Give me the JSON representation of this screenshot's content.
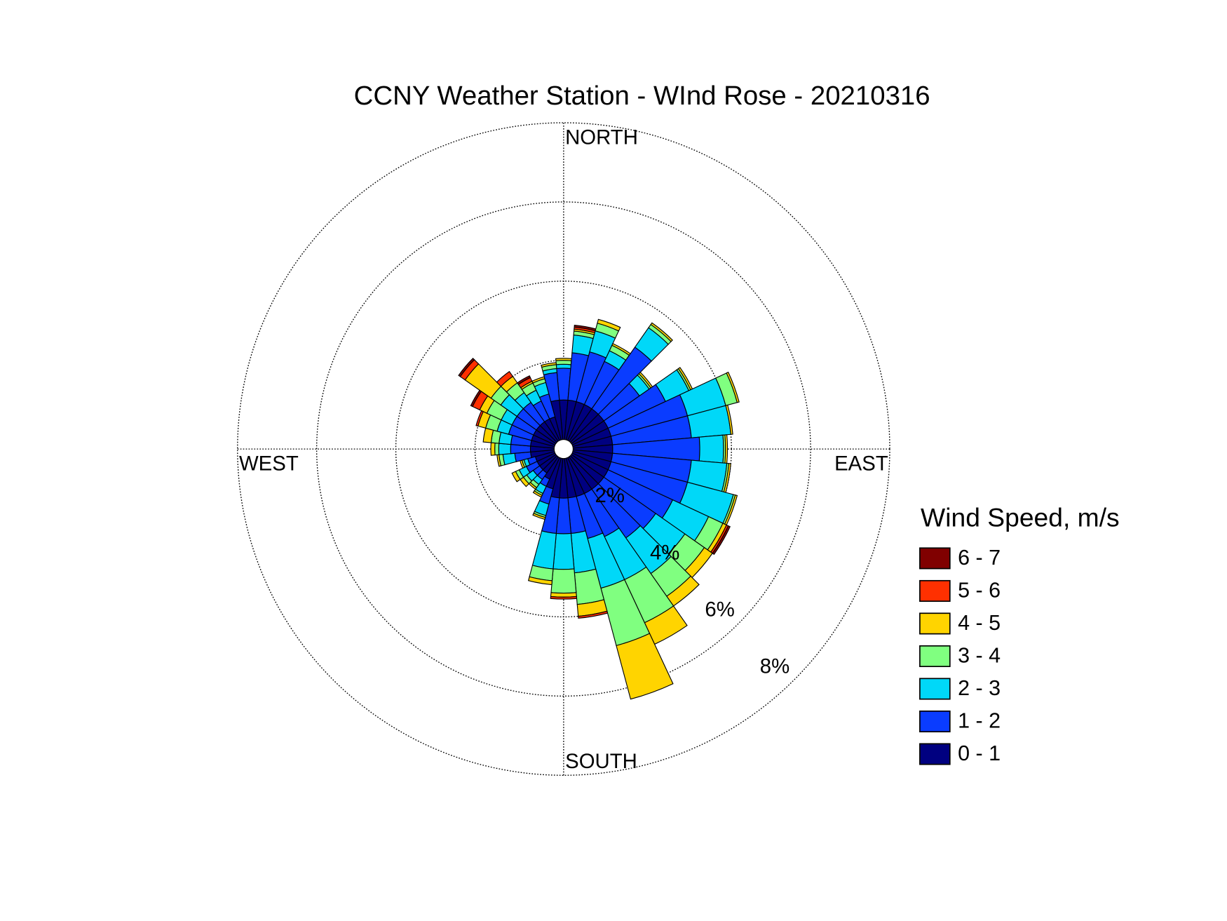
{
  "chart_data": {
    "type": "windrose",
    "title": "CCNY Weather Station - WInd Rose - 20210316",
    "direction_labels": [
      "NORTH",
      "EAST",
      "SOUTH",
      "WEST"
    ],
    "legend_title": "Wind Speed, m/s",
    "categories": [
      null,
      null,
      null,
      null,
      null,
      null,
      null,
      null,
      null,
      null,
      null,
      null,
      null,
      null,
      null,
      null,
      null,
      null,
      null,
      null,
      null,
      null,
      null,
      null,
      null,
      null,
      null,
      null,
      null,
      null,
      null,
      null,
      null,
      null,
      null,
      null
    ],
    "rlim": [
      0,
      8
    ],
    "rticks": [
      {
        "value": 2,
        "label": "2%"
      },
      {
        "value": 4,
        "label": "4%"
      },
      {
        "value": 6,
        "label": "6%"
      },
      {
        "value": 8,
        "label": "8%"
      }
    ],
    "grid": true,
    "series": [
      {
        "name": "0 - 1",
        "color": "#000080",
        "values": [
          1.0,
          1.0,
          1.0,
          1.0,
          1.0,
          1.0,
          1.0,
          1.0,
          1.0,
          1.0,
          1.0,
          1.0,
          1.0,
          1.0,
          1.0,
          1.0,
          1.0,
          1.0,
          1.0,
          1.0,
          0.8,
          0.6,
          0.5,
          0.5,
          0.5,
          0.5,
          0.6,
          0.6,
          0.6,
          0.6,
          0.6,
          0.6,
          0.6,
          0.6,
          0.6,
          1.0
        ]
      },
      {
        "name": "1 - 2",
        "color": "#0a3cff",
        "values": [
          0.8,
          1.2,
          1.3,
          1.2,
          1.9,
          1.1,
          1.6,
          2.0,
          2.0,
          2.2,
          2.0,
          2.0,
          1.8,
          1.6,
          1.5,
          1.2,
          1.1,
          0.9,
          0.9,
          0.9,
          0.4,
          0.2,
          0.2,
          0.2,
          0.3,
          0.2,
          0.4,
          0.5,
          0.5,
          0.6,
          0.6,
          0.6,
          0.6,
          0.5,
          0.6,
          0.7
        ]
      },
      {
        "name": "2 - 3",
        "color": "#00d8f8",
        "values": [
          0.1,
          0.45,
          0.55,
          0.3,
          0.6,
          0.3,
          0.65,
          1.0,
          1.0,
          0.6,
          0.9,
          1.2,
          1.0,
          0.9,
          1.1,
          1.2,
          1.3,
          1.0,
          0.9,
          0.9,
          0.3,
          0.2,
          0.15,
          0.2,
          0.2,
          0.1,
          0.3,
          0.3,
          0.3,
          0.3,
          0.3,
          0.5,
          0.3,
          0.3,
          0.3,
          0.1
        ]
      },
      {
        "name": "3 - 4",
        "color": "#80ff80",
        "values": [
          0.1,
          0.1,
          0.2,
          0.15,
          0.1,
          0.05,
          0.05,
          0.3,
          0.0,
          0.05,
          0.05,
          0.05,
          0.4,
          0.6,
          0.7,
          1.2,
          1.5,
          0.8,
          0.6,
          0.3,
          0.05,
          0.05,
          0.1,
          0.1,
          0.1,
          0.05,
          0.1,
          0.1,
          0.2,
          0.3,
          0.4,
          0.3,
          0.3,
          0.2,
          0.1,
          0.1
        ]
      },
      {
        "name": "4 - 5",
        "color": "#ffd400",
        "values": [
          0.05,
          0.05,
          0.1,
          0.05,
          0.05,
          0.05,
          0.05,
          0.05,
          0.05,
          0.05,
          0.05,
          0.05,
          0.1,
          0.25,
          0.3,
          0.6,
          1.4,
          0.3,
          0.1,
          0.1,
          0.05,
          0.05,
          0.05,
          0.1,
          0.1,
          0.05,
          0.05,
          0.1,
          0.2,
          0.2,
          0.2,
          0.8,
          0.2,
          0.05,
          0.05,
          0.05
        ]
      },
      {
        "name": "5 - 6",
        "color": "#ff3000",
        "values": [
          0,
          0.05,
          0,
          0,
          0,
          0,
          0,
          0,
          0,
          0,
          0,
          0,
          0.05,
          0,
          0,
          0,
          0,
          0.05,
          0.05,
          0,
          0,
          0,
          0,
          0,
          0,
          0,
          0,
          0,
          0,
          0.05,
          0.2,
          0.15,
          0.15,
          0.1,
          0,
          0
        ]
      },
      {
        "name": "6 - 7",
        "color": "#800000",
        "values": [
          0,
          0.05,
          0,
          0,
          0,
          0,
          0,
          0,
          0,
          0,
          0,
          0,
          0.05,
          0,
          0,
          0,
          0,
          0,
          0,
          0,
          0,
          0,
          0,
          0,
          0,
          0,
          0,
          0,
          0,
          0,
          0.05,
          0.05,
          0,
          0.05,
          0,
          0
        ]
      }
    ]
  }
}
